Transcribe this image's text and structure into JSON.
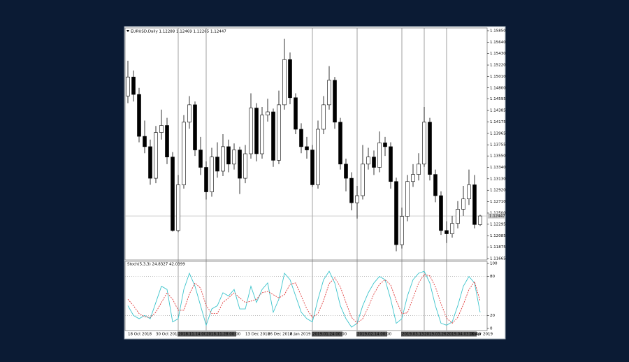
{
  "chart_data": [
    {
      "type": "candlestick",
      "title": "EURUSD,Daily 1.12288 1.12469 1.12265 1.12447",
      "categories": [
        "18 Oct 2018",
        null,
        null,
        null,
        null,
        "30 Oct 2018",
        null,
        null,
        null,
        "2018.11.14 00:00",
        null,
        null,
        null,
        null,
        "2018.11.28 00:00",
        null,
        null,
        null,
        null,
        null,
        null,
        "13 Dec 2018",
        null,
        null,
        null,
        "26 Dec 2018",
        null,
        null,
        null,
        "8 Jan 2019",
        null,
        null,
        null,
        "2019.01.24 00:00",
        null,
        null,
        null,
        null,
        null,
        null,
        null,
        "2019.02.14 00:00",
        null,
        null,
        null,
        null,
        null,
        null,
        null,
        "2019.03.13 00:00",
        null,
        null,
        null,
        "2019.03.26 00:00",
        null,
        null,
        null,
        "2019.04.03 00:00",
        null,
        null,
        null,
        null,
        null,
        "18 Apr 2019"
      ],
      "open": [
        1.1465,
        1.15,
        1.1468,
        1.1391,
        1.1372,
        1.1314,
        1.1398,
        1.1411,
        1.1353,
        1.1218,
        1.1302,
        1.1417,
        1.1449,
        1.1366,
        1.1334,
        1.1289,
        1.1353,
        1.1327,
        1.1372,
        1.134,
        1.1366,
        1.1314,
        1.1359,
        1.1443,
        1.1359,
        1.143,
        1.1436,
        1.1347,
        1.1449,
        1.1532,
        1.1462,
        1.1404,
        1.1372,
        1.1366,
        1.1302,
        1.1404,
        1.1449,
        1.1494,
        1.1417,
        1.134,
        1.1314,
        1.1269,
        1.1282,
        1.134,
        1.1353,
        1.1334,
        1.1379,
        1.1372,
        1.1308,
        1.1192,
        1.1244,
        1.1308,
        1.1321,
        1.134,
        1.1417,
        1.1321,
        1.1282,
        1.1218,
        1.1212,
        1.1231,
        1.1257,
        1.1276,
        1.1302,
        1.12288
      ],
      "high": [
        1.153,
        1.1512,
        1.148,
        1.142,
        1.1385,
        1.141,
        1.144,
        1.1425,
        1.1362,
        1.132,
        1.143,
        1.1465,
        1.1455,
        1.139,
        1.1345,
        1.137,
        1.138,
        1.1395,
        1.1385,
        1.1378,
        1.1372,
        1.1375,
        1.147,
        1.1452,
        1.1445,
        1.146,
        1.1442,
        1.1475,
        1.157,
        1.1545,
        1.147,
        1.1415,
        1.139,
        1.1375,
        1.142,
        1.1465,
        1.152,
        1.15,
        1.1425,
        1.135,
        1.1325,
        1.13,
        1.1375,
        1.137,
        1.1365,
        1.14,
        1.139,
        1.138,
        1.1315,
        1.126,
        1.132,
        1.134,
        1.136,
        1.1445,
        1.1425,
        1.133,
        1.129,
        1.1235,
        1.1245,
        1.1272,
        1.13,
        1.133,
        1.132,
        1.12469
      ],
      "low": [
        1.1452,
        1.1455,
        1.138,
        1.136,
        1.1302,
        1.1305,
        1.1385,
        1.134,
        1.1216,
        1.1215,
        1.1295,
        1.1405,
        1.1355,
        1.132,
        1.1275,
        1.128,
        1.1315,
        1.1318,
        1.1325,
        1.133,
        1.1285,
        1.1305,
        1.135,
        1.1345,
        1.135,
        1.1418,
        1.1335,
        1.134,
        1.144,
        1.145,
        1.1395,
        1.136,
        1.135,
        1.1298,
        1.1295,
        1.1395,
        1.144,
        1.1405,
        1.133,
        1.129,
        1.1255,
        1.124,
        1.1275,
        1.133,
        1.132,
        1.1325,
        1.1355,
        1.1295,
        1.118,
        1.1185,
        1.1235,
        1.1298,
        1.131,
        1.1335,
        1.131,
        1.127,
        1.121,
        1.1195,
        1.1205,
        1.1222,
        1.1245,
        1.1265,
        1.1222,
        1.12265
      ],
      "close": [
        1.15,
        1.1468,
        1.1391,
        1.1372,
        1.1314,
        1.1398,
        1.1411,
        1.1353,
        1.1218,
        1.1302,
        1.1417,
        1.1449,
        1.1366,
        1.1334,
        1.1289,
        1.1353,
        1.1327,
        1.1372,
        1.134,
        1.1366,
        1.1314,
        1.1359,
        1.1443,
        1.1359,
        1.143,
        1.1436,
        1.1347,
        1.1449,
        1.1532,
        1.1462,
        1.1404,
        1.1372,
        1.1366,
        1.1302,
        1.1404,
        1.1449,
        1.1494,
        1.1417,
        1.134,
        1.1314,
        1.1269,
        1.1282,
        1.134,
        1.1353,
        1.1334,
        1.1379,
        1.1372,
        1.1308,
        1.1192,
        1.1244,
        1.1308,
        1.1321,
        1.134,
        1.1417,
        1.1321,
        1.1282,
        1.1218,
        1.1212,
        1.1231,
        1.1257,
        1.1276,
        1.1302,
        1.1229,
        1.12447
      ],
      "ylim": [
        1.11639,
        1.15901
      ],
      "yticks": [
        {
          "value": 1.1585,
          "label": "1.15850"
        },
        {
          "value": 1.1564,
          "label": "1.15640"
        },
        {
          "value": 1.1543,
          "label": "1.15430"
        },
        {
          "value": 1.1522,
          "label": "1.15220"
        },
        {
          "value": 1.1501,
          "label": "1.15010"
        },
        {
          "value": 1.148,
          "label": "1.14800"
        },
        {
          "value": 1.14595,
          "label": "1.14595"
        },
        {
          "value": 1.14385,
          "label": "1.14385"
        },
        {
          "value": 1.14175,
          "label": "1.14175"
        },
        {
          "value": 1.13965,
          "label": "1.13965"
        },
        {
          "value": 1.13755,
          "label": "1.13755"
        },
        {
          "value": 1.1355,
          "label": "1.13550"
        },
        {
          "value": 1.1334,
          "label": "1.13340"
        },
        {
          "value": 1.1313,
          "label": "1.13130"
        },
        {
          "value": 1.1292,
          "label": "1.12920"
        },
        {
          "value": 1.1271,
          "label": "1.12710"
        },
        {
          "value": 1.125,
          "label": "1.12500"
        },
        {
          "value": 1.12295,
          "label": "1.12295"
        },
        {
          "value": 1.12085,
          "label": "1.12085"
        },
        {
          "value": 1.11875,
          "label": "1.11875"
        },
        {
          "value": 1.11665,
          "label": "1.11665"
        }
      ],
      "bid": {
        "value": 1.12447,
        "label": "1.12447"
      },
      "up_color": "#ffffff",
      "down_color": "#000000"
    },
    {
      "type": "line",
      "title": "Stoch(5,3,3) 24.8327 42.0399",
      "series": [
        {
          "color": "#3cc4cc",
          "values": [
            35,
            20,
            15,
            20,
            15,
            40,
            65,
            60,
            10,
            15,
            60,
            85,
            65,
            35,
            5,
            30,
            35,
            55,
            50,
            60,
            30,
            30,
            65,
            40,
            60,
            70,
            25,
            45,
            85,
            75,
            50,
            25,
            15,
            10,
            45,
            75,
            88,
            70,
            35,
            15,
            2,
            8,
            35,
            55,
            70,
            80,
            75,
            45,
            8,
            15,
            50,
            75,
            85,
            88,
            70,
            35,
            8,
            5,
            10,
            35,
            65,
            80,
            70,
            24.8327
          ]
        },
        {
          "color": "#e03a3a",
          "dashed": true,
          "values": [
            45,
            35,
            23,
            18,
            17,
            25,
            40,
            55,
            45,
            28,
            28,
            53,
            70,
            62,
            35,
            23,
            23,
            40,
            47,
            55,
            47,
            40,
            42,
            45,
            55,
            57,
            52,
            47,
            52,
            68,
            70,
            50,
            30,
            17,
            23,
            43,
            69,
            78,
            64,
            40,
            17,
            8,
            15,
            33,
            53,
            68,
            75,
            67,
            43,
            23,
            24,
            47,
            70,
            83,
            81,
            64,
            38,
            16,
            8,
            17,
            37,
            60,
            72,
            42.0399
          ]
        }
      ],
      "ylim": [
        0,
        100
      ],
      "yticks": [
        100,
        80,
        20,
        0
      ],
      "levels": [
        80,
        20
      ]
    }
  ]
}
